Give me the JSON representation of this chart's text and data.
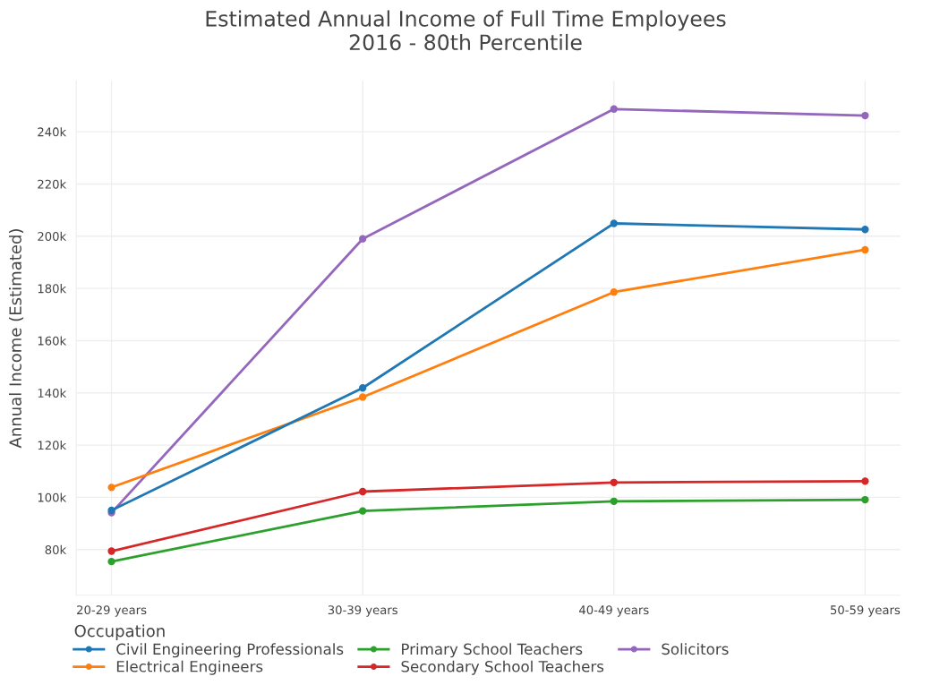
{
  "chart_data": {
    "type": "line",
    "title": "Estimated Annual Income of Full Time Employees\n2016 - 80th Percentile",
    "ylabel": "Annual Income (Estimated)",
    "legend_title": "Occupation",
    "categories": [
      "20-29 years",
      "30-39 years",
      "40-49 years",
      "50-59 years"
    ],
    "series": [
      {
        "name": "Civil Engineering Professionals",
        "color": "#1f77b4",
        "values": [
          95000,
          141900,
          204900,
          202600
        ]
      },
      {
        "name": "Electrical Engineers",
        "color": "#ff7f0e",
        "values": [
          103800,
          138400,
          178600,
          194800
        ]
      },
      {
        "name": "Primary School Teachers",
        "color": "#2ca02c",
        "values": [
          75400,
          94800,
          98500,
          99100
        ]
      },
      {
        "name": "Secondary School Teachers",
        "color": "#d62728",
        "values": [
          79400,
          102200,
          105700,
          106200
        ]
      },
      {
        "name": "Solicitors",
        "color": "#9467bd",
        "values": [
          94100,
          199000,
          248700,
          246200
        ]
      }
    ],
    "ylim": [
      62500,
      259500
    ],
    "yticks": [
      {
        "value": 80000,
        "label": "80k"
      },
      {
        "value": 100000,
        "label": "100k"
      },
      {
        "value": 120000,
        "label": "120k"
      },
      {
        "value": 140000,
        "label": "140k"
      },
      {
        "value": 160000,
        "label": "160k"
      },
      {
        "value": 180000,
        "label": "180k"
      },
      {
        "value": 200000,
        "label": "200k"
      },
      {
        "value": 220000,
        "label": "220k"
      },
      {
        "value": 240000,
        "label": "240k"
      }
    ],
    "grid": true,
    "legend": "bottom",
    "marker": "circle",
    "line_style": "solid"
  }
}
